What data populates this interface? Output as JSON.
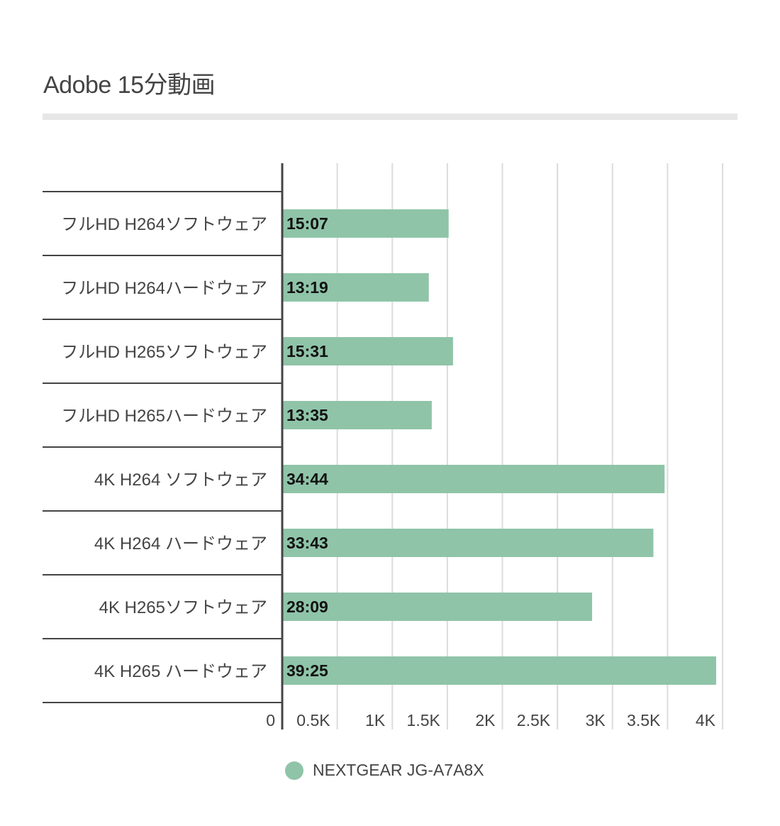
{
  "title": "Adobe 15分動画",
  "chart_data": {
    "type": "bar",
    "orientation": "horizontal",
    "title": "Adobe 15分動画",
    "categories": [
      "フルHD H264ソフトウェア",
      "フルHD H264ハードウェア",
      "フルHD H265ソフトウェア",
      "フルHD H265ハードウェア",
      "4K H264 ソフトウェア",
      "4K H264 ハードウェア",
      "4K H265ソフトウェア",
      "4K H265 ハードウェア"
    ],
    "series": [
      {
        "name": "NEXTGEAR JG-A7A8X",
        "color": "#8fc4a8",
        "values_seconds": [
          907,
          799,
          931,
          815,
          2084,
          2023,
          1689,
          2365
        ],
        "data_labels": [
          "15:07",
          "13:19",
          "15:31",
          "13:35",
          "34:44",
          "33:43",
          "28:09",
          "39:25"
        ]
      }
    ],
    "x_tick_labels": [
      "0",
      "0.5K",
      "1K",
      "1.5K",
      "2K",
      "2.5K",
      "3K",
      "3.5K",
      "4K"
    ],
    "xlim_seconds": [
      0,
      2400
    ],
    "grid": true,
    "legend_position": "bottom"
  }
}
